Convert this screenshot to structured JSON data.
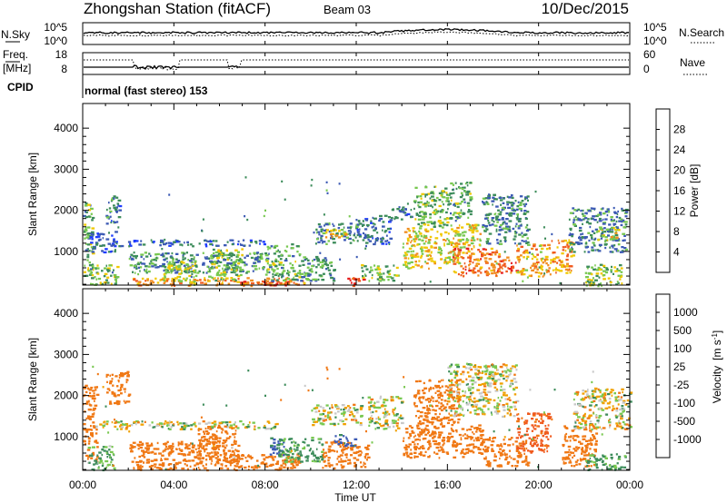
{
  "header": {
    "station": "Zhongshan Station (fitACF)",
    "beam": "Beam 03",
    "date": "10/Dec/2015"
  },
  "noise_panel": {
    "left_label": "N.Sky",
    "left_ticks": [
      "10^5",
      "10^0"
    ],
    "right_ticks": [
      "10^5",
      "10^0"
    ],
    "right_label": "N.Search",
    "right_line_style": "dotted"
  },
  "freq_panel": {
    "left_label_line1": "Freq.",
    "left_label_line2": "[MHz]",
    "left_ticks": [
      "18",
      "8"
    ],
    "right_ticks": [
      "60",
      "0"
    ],
    "right_label": "Nave",
    "right_line_style": "dotted"
  },
  "cpid_panel": {
    "label": "CPID",
    "text": "normal (fast stereo) 153"
  },
  "x_axis": {
    "label": "Time UT",
    "ticks": [
      "00:00",
      "04:00",
      "08:00",
      "12:00",
      "16:00",
      "20:00",
      "00:00"
    ],
    "range_hours": [
      0,
      24
    ]
  },
  "chart_data": [
    {
      "type": "heatmap",
      "name": "power",
      "ylabel": "Slant Range [km]",
      "y_ticks": [
        "1000",
        "2000",
        "3000",
        "4000"
      ],
      "ylim": [
        180,
        4600
      ],
      "colorbar": {
        "label": "Power [dB]",
        "ticks": [
          "4",
          "8",
          "12",
          "16",
          "20",
          "24",
          "28"
        ],
        "colors": [
          "#1e3cff",
          "#3c5ab4",
          "#3c8c5a",
          "#78c850",
          "#f0c800",
          "#f08c1e",
          "#f05a1e",
          "#e61e1e"
        ]
      },
      "echo_regions": [
        {
          "t0": 0.0,
          "t1": 0.4,
          "r0": 400,
          "r1": 2200,
          "v": 12
        },
        {
          "t0": 0.2,
          "t1": 1.5,
          "r0": 200,
          "r1": 700,
          "v": 14
        },
        {
          "t0": 0.3,
          "t1": 1.4,
          "r0": 1000,
          "r1": 1500,
          "v": 6
        },
        {
          "t0": 1.0,
          "t1": 1.6,
          "r0": 1700,
          "r1": 2400,
          "v": 8
        },
        {
          "t0": 1.2,
          "t1": 8.0,
          "r0": 1150,
          "r1": 1300,
          "v": 6
        },
        {
          "t0": 2.0,
          "t1": 8.0,
          "r0": 500,
          "r1": 1000,
          "v": 10
        },
        {
          "t0": 2.0,
          "t1": 9.8,
          "r0": 180,
          "r1": 380,
          "v": 22
        },
        {
          "t0": 3.5,
          "t1": 5.0,
          "r0": 200,
          "r1": 800,
          "v": 16
        },
        {
          "t0": 5.5,
          "t1": 7.0,
          "r0": 300,
          "r1": 1100,
          "v": 14
        },
        {
          "t0": 6.5,
          "t1": 9.0,
          "r0": 180,
          "r1": 300,
          "v": 27
        },
        {
          "t0": 8.0,
          "t1": 9.5,
          "r0": 300,
          "r1": 1200,
          "v": 12
        },
        {
          "t0": 9.5,
          "t1": 11.0,
          "r0": 300,
          "r1": 900,
          "v": 10
        },
        {
          "t0": 10.2,
          "t1": 12.0,
          "r0": 1200,
          "r1": 1700,
          "v": 10
        },
        {
          "t0": 10.5,
          "t1": 11.5,
          "r0": 1350,
          "r1": 1550,
          "v": 19
        },
        {
          "t0": 11.5,
          "t1": 12.3,
          "r0": 180,
          "r1": 400,
          "v": 28
        },
        {
          "t0": 12.0,
          "t1": 13.5,
          "r0": 1200,
          "r1": 1900,
          "v": 7
        },
        {
          "t0": 12.2,
          "t1": 13.8,
          "r0": 300,
          "r1": 700,
          "v": 14
        },
        {
          "t0": 13.5,
          "t1": 14.5,
          "r0": 1800,
          "r1": 2100,
          "v": 7
        },
        {
          "t0": 14.0,
          "t1": 16.5,
          "r0": 600,
          "r1": 1600,
          "v": 18
        },
        {
          "t0": 14.5,
          "t1": 16.0,
          "r0": 1600,
          "r1": 2600,
          "v": 13
        },
        {
          "t0": 16.0,
          "t1": 17.0,
          "r0": 1800,
          "r1": 2700,
          "v": 12
        },
        {
          "t0": 16.2,
          "t1": 18.3,
          "r0": 400,
          "r1": 1100,
          "v": 24
        },
        {
          "t0": 16.5,
          "t1": 17.5,
          "r0": 1100,
          "r1": 1700,
          "v": 17
        },
        {
          "t0": 17.5,
          "t1": 19.5,
          "r0": 1200,
          "r1": 2400,
          "v": 9
        },
        {
          "t0": 18.0,
          "t1": 19.0,
          "r0": 500,
          "r1": 900,
          "v": 27
        },
        {
          "t0": 19.0,
          "t1": 20.5,
          "r0": 400,
          "r1": 1200,
          "v": 20
        },
        {
          "t0": 20.5,
          "t1": 21.5,
          "r0": 500,
          "r1": 1300,
          "v": 21
        },
        {
          "t0": 21.3,
          "t1": 23.8,
          "r0": 1000,
          "r1": 2100,
          "v": 9
        },
        {
          "t0": 22.0,
          "t1": 23.8,
          "r0": 180,
          "r1": 700,
          "v": 14
        },
        {
          "t0": 22.5,
          "t1": 23.5,
          "r0": 1300,
          "r1": 1600,
          "v": 16
        }
      ]
    },
    {
      "type": "heatmap",
      "name": "velocity",
      "ylabel": "Slant Range [km]",
      "y_ticks": [
        "1000",
        "2000",
        "3000",
        "4000"
      ],
      "ylim": [
        180,
        4600
      ],
      "colorbar": {
        "label": "Velocity",
        "unit": "[m s",
        "unit_exp": "-1",
        "unit_close": "]",
        "ticks": [
          "1000",
          "500",
          "100",
          "25",
          "-25",
          "-100",
          "-500",
          "-1000"
        ],
        "colors": [
          "#1e3cff",
          "#3c5ab4",
          "#3c8c5a",
          "#78c850",
          "#c8c8c8",
          "#f0a000",
          "#f07814",
          "#f05a1e",
          "#e61e1e"
        ]
      },
      "echo_regions": [
        {
          "t0": 0.0,
          "t1": 0.6,
          "r0": 400,
          "r1": 2300,
          "v": -300
        },
        {
          "t0": 0.2,
          "t1": 1.4,
          "r0": 200,
          "r1": 800,
          "v": 150
        },
        {
          "t0": 0.5,
          "t1": 8.5,
          "r0": 1200,
          "r1": 1400,
          "v": 0
        },
        {
          "t0": 1.0,
          "t1": 2.0,
          "r0": 1800,
          "r1": 2600,
          "v": -300
        },
        {
          "t0": 2.0,
          "t1": 6.0,
          "r0": 200,
          "r1": 900,
          "v": -300
        },
        {
          "t0": 5.0,
          "t1": 6.8,
          "r0": 300,
          "r1": 1300,
          "v": -300
        },
        {
          "t0": 6.0,
          "t1": 9.5,
          "r0": 200,
          "r1": 600,
          "v": -300
        },
        {
          "t0": 8.2,
          "t1": 8.8,
          "r0": 500,
          "r1": 1000,
          "v": 600
        },
        {
          "t0": 8.5,
          "t1": 10.5,
          "r0": 400,
          "r1": 1000,
          "v": 150
        },
        {
          "t0": 10.0,
          "t1": 12.2,
          "r0": 1300,
          "r1": 1800,
          "v": 0
        },
        {
          "t0": 10.5,
          "t1": 12.5,
          "r0": 250,
          "r1": 900,
          "v": -300
        },
        {
          "t0": 11.0,
          "t1": 12.0,
          "r0": 800,
          "r1": 1100,
          "v": 600
        },
        {
          "t0": 12.5,
          "t1": 14.0,
          "r0": 1200,
          "r1": 2000,
          "v": 0
        },
        {
          "t0": 14.0,
          "t1": 17.5,
          "r0": 500,
          "r1": 1300,
          "v": -300
        },
        {
          "t0": 14.5,
          "t1": 16.5,
          "r0": 1300,
          "r1": 2400,
          "v": -300
        },
        {
          "t0": 16.0,
          "t1": 19.0,
          "r0": 1500,
          "r1": 2800,
          "v": 0
        },
        {
          "t0": 17.5,
          "t1": 19.5,
          "r0": 300,
          "r1": 1000,
          "v": -300
        },
        {
          "t0": 19.0,
          "t1": 20.5,
          "r0": 600,
          "r1": 1600,
          "v": -600
        },
        {
          "t0": 21.0,
          "t1": 22.5,
          "r0": 300,
          "r1": 1300,
          "v": -300
        },
        {
          "t0": 21.5,
          "t1": 24.0,
          "r0": 1200,
          "r1": 2200,
          "v": 0
        },
        {
          "t0": 22.0,
          "t1": 23.8,
          "r0": 200,
          "r1": 600,
          "v": 150
        }
      ]
    }
  ]
}
